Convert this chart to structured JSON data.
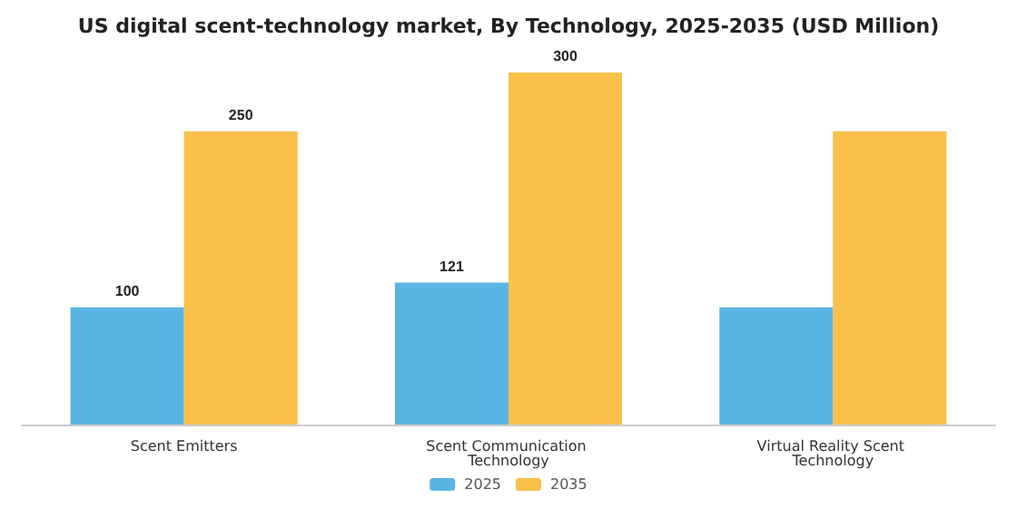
{
  "chart_data": {
    "type": "bar",
    "title": "US digital scent-technology market, By Technology, 2025-2035 (USD Million)",
    "categories": [
      "Scent Emitters",
      "Scent Communication Technology",
      "Virtual Reality Scent Technology"
    ],
    "series": [
      {
        "name": "2025",
        "color": "#5ab4e5",
        "values": [
          100,
          121,
          100
        ],
        "value_labels": [
          "100",
          "121",
          null
        ]
      },
      {
        "name": "2035",
        "color": "#f9c04a",
        "values": [
          250,
          300,
          250
        ],
        "value_labels": [
          "250",
          "300",
          null
        ]
      }
    ],
    "legend": "bottom",
    "grid": false,
    "tick_labels": "x"
  }
}
